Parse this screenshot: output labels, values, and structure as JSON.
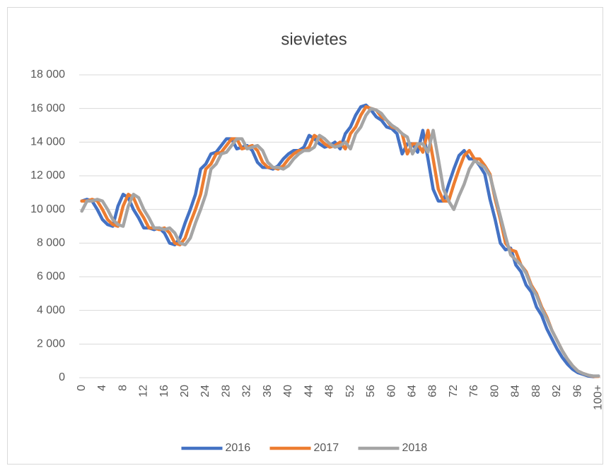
{
  "chart_data": {
    "type": "line",
    "title": "sievietes",
    "categories": [
      "0",
      null,
      null,
      null,
      "4",
      null,
      null,
      null,
      "8",
      null,
      null,
      null,
      "12",
      null,
      null,
      null,
      "16",
      null,
      null,
      null,
      "20",
      null,
      null,
      null,
      "24",
      null,
      null,
      null,
      "28",
      null,
      null,
      null,
      "32",
      null,
      null,
      null,
      "36",
      null,
      null,
      null,
      "40",
      null,
      null,
      null,
      "44",
      null,
      null,
      null,
      "48",
      null,
      null,
      null,
      "52",
      null,
      null,
      null,
      "56",
      null,
      null,
      null,
      "60",
      null,
      null,
      null,
      "64",
      null,
      null,
      null,
      "68",
      null,
      null,
      null,
      "72",
      null,
      null,
      null,
      "76",
      null,
      null,
      null,
      "80",
      null,
      null,
      null,
      "84",
      null,
      null,
      null,
      "88",
      null,
      null,
      null,
      "92",
      null,
      null,
      null,
      "96",
      null,
      null,
      null,
      "100+"
    ],
    "series": [
      {
        "name": "2016",
        "color": "#4472c4",
        "values": [
          10500,
          10600,
          10500,
          10000,
          9400,
          9100,
          9000,
          10200,
          10900,
          10700,
          10000,
          9500,
          8900,
          8900,
          8800,
          8900,
          8600,
          8000,
          7900,
          8300,
          9200,
          10000,
          10900,
          12400,
          12700,
          13300,
          13400,
          13800,
          14200,
          14200,
          13600,
          13700,
          13800,
          13500,
          12800,
          12500,
          12500,
          12400,
          12600,
          13000,
          13300,
          13500,
          13500,
          13700,
          14400,
          14200,
          13900,
          13700,
          13800,
          14000,
          13600,
          14500,
          14900,
          15600,
          16100,
          16200,
          15900,
          15500,
          15300,
          14900,
          14800,
          14500,
          13300,
          13900,
          13900,
          13400,
          14700,
          13000,
          11200,
          10500,
          10500,
          11500,
          12400,
          13200,
          13500,
          13000,
          13000,
          12600,
          12100,
          10600,
          9400,
          8000,
          7600,
          7700,
          6700,
          6300,
          5500,
          5100,
          4200,
          3700,
          2900,
          2300,
          1700,
          1200,
          800,
          500,
          300,
          200,
          100,
          60,
          100
        ]
      },
      {
        "name": "2017",
        "color": "#ed7d31",
        "values": [
          10500,
          10500,
          10600,
          10500,
          10000,
          9400,
          9100,
          9000,
          10200,
          10900,
          10700,
          10000,
          9500,
          8900,
          8900,
          8800,
          8900,
          8600,
          8000,
          7900,
          8300,
          9200,
          10000,
          10900,
          12400,
          12700,
          13300,
          13400,
          13800,
          14200,
          14200,
          13600,
          13700,
          13800,
          13500,
          12800,
          12500,
          12500,
          12400,
          12600,
          13000,
          13300,
          13500,
          13500,
          13700,
          14400,
          14200,
          13900,
          13700,
          13800,
          14000,
          13600,
          14500,
          14900,
          15600,
          16100,
          16000,
          15900,
          15500,
          15300,
          14900,
          14800,
          14500,
          13300,
          13900,
          13900,
          13400,
          14700,
          13000,
          11200,
          10500,
          10500,
          11500,
          12400,
          13200,
          13500,
          13000,
          13000,
          12600,
          12100,
          10600,
          9400,
          8000,
          7600,
          7500,
          6700,
          6300,
          5500,
          5000,
          4200,
          3600,
          2800,
          2200,
          1600,
          1100,
          700,
          400,
          250,
          150,
          80,
          80
        ]
      },
      {
        "name": "2018",
        "color": "#a5a5a5",
        "values": [
          9900,
          10500,
          10500,
          10600,
          10500,
          10000,
          9400,
          9100,
          9000,
          10200,
          10900,
          10700,
          10000,
          9500,
          8900,
          8900,
          8800,
          8900,
          8600,
          8000,
          7900,
          8300,
          9200,
          10000,
          10900,
          12400,
          12700,
          13300,
          13400,
          13800,
          14200,
          14200,
          13600,
          13700,
          13800,
          13500,
          12800,
          12500,
          12500,
          12400,
          12600,
          13000,
          13300,
          13500,
          13500,
          13700,
          14400,
          14200,
          13900,
          13700,
          13800,
          14000,
          13600,
          14500,
          14900,
          15600,
          16000,
          15900,
          15700,
          15300,
          15000,
          14800,
          14500,
          14300,
          13300,
          13900,
          13900,
          13400,
          14700,
          13000,
          11200,
          10500,
          10000,
          10800,
          11500,
          12400,
          12900,
          12700,
          12500,
          12000,
          10800,
          9600,
          8400,
          7300,
          7000,
          6700,
          6200,
          5400,
          4900,
          4100,
          3500,
          2800,
          2200,
          1600,
          1100,
          700,
          400,
          250,
          150,
          100,
          100
        ]
      }
    ],
    "ylim": [
      0,
      18000
    ],
    "yticks": [
      0,
      {
        "value": 2000,
        "label": "2 000"
      },
      {
        "value": 4000,
        "label": "4 000"
      },
      {
        "value": 6000,
        "label": "6 000"
      },
      {
        "value": 8000,
        "label": "8 000"
      },
      {
        "value": 10000,
        "label": "10 000"
      },
      {
        "value": 12000,
        "label": "12 000"
      },
      {
        "value": 14000,
        "label": "14 000"
      },
      {
        "value": 16000,
        "label": "16 000"
      },
      {
        "value": 18000,
        "label": "18 000"
      }
    ],
    "grid": true,
    "legend": "bottom"
  }
}
